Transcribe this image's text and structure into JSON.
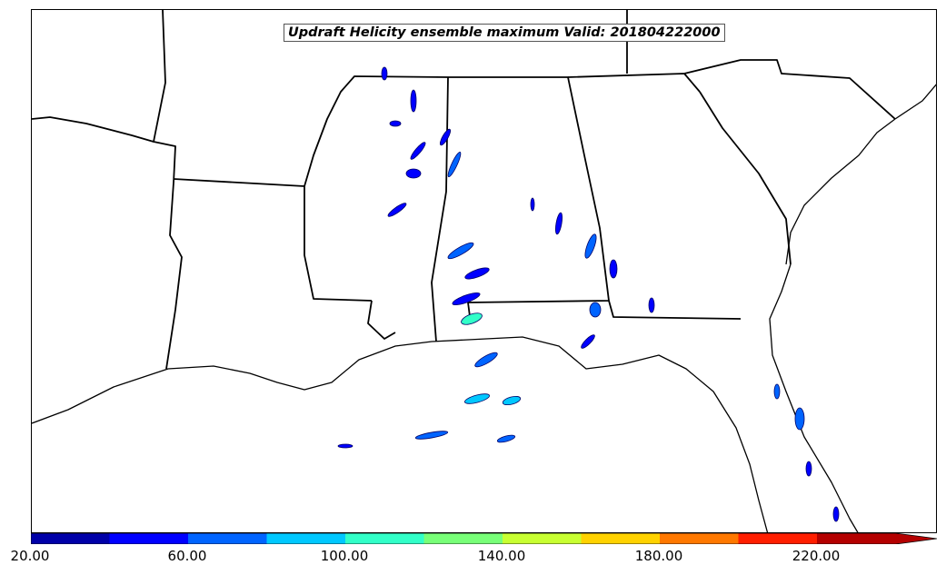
{
  "map": {
    "title": "Updraft Helicity ensemble maximum Valid: 201804222000",
    "features": [
      "state-boundaries",
      "coastlines",
      "updraft-helicity-contours"
    ]
  },
  "colorbar": {
    "tick_labels": [
      "20.00",
      "60.00",
      "100.00",
      "140.00",
      "180.00",
      "220.00"
    ],
    "colors": [
      "#0000a8",
      "#0000ff",
      "#0064ff",
      "#00c8ff",
      "#32ffc8",
      "#78ff78",
      "#c8ff32",
      "#ffd200",
      "#ff7800",
      "#ff1e00",
      "#b40000"
    ],
    "extend": "max"
  }
}
